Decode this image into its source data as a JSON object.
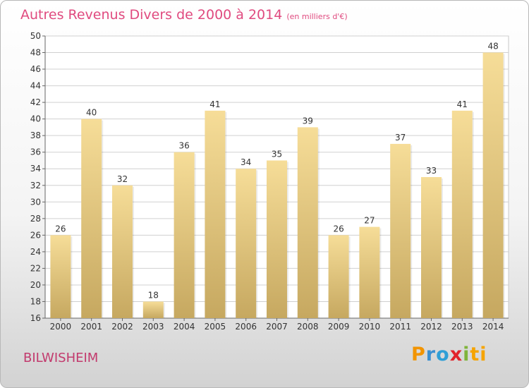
{
  "title": "Autres Revenus Divers de 2000 à 2014",
  "subtitle": "(en milliers d'€)",
  "location": "BILWISHEIM",
  "logo": {
    "text": "Proxiti",
    "letters": [
      "P",
      "r",
      "o",
      "x",
      "i",
      "ti"
    ],
    "colors": [
      "#f29400",
      "#3a8fd1",
      "#2f9fd6",
      "#e2232a",
      "#7fb43a",
      "#f6a400"
    ]
  },
  "colors": {
    "title": "#e04a7f",
    "location": "#c23a6d",
    "bar_light": "#f6dd98",
    "bar_dark": "#c6a860"
  },
  "chart_data": {
    "type": "bar",
    "title": "Autres Revenus Divers de 2000 à 2014",
    "subtitle": "(en milliers d'€)",
    "categories": [
      "2000",
      "2001",
      "2002",
      "2003",
      "2004",
      "2005",
      "2006",
      "2007",
      "2008",
      "2009",
      "2010",
      "2011",
      "2012",
      "2013",
      "2014"
    ],
    "values": [
      26,
      40,
      32,
      18,
      36,
      41,
      34,
      35,
      39,
      26,
      27,
      37,
      33,
      41,
      48
    ],
    "ylim": [
      16,
      50
    ],
    "yticks": [
      16,
      18,
      20,
      22,
      24,
      26,
      28,
      30,
      32,
      34,
      36,
      38,
      40,
      42,
      44,
      46,
      48,
      50
    ],
    "grid": true,
    "data_labels": true
  }
}
